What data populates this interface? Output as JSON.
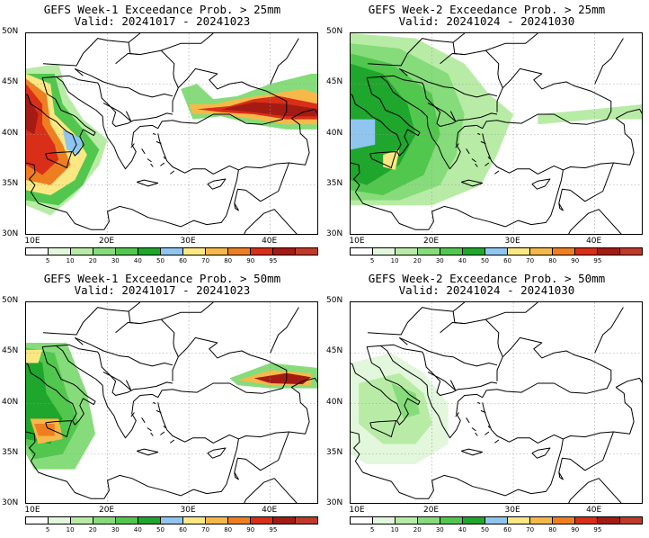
{
  "colorbar": {
    "colors": [
      "#ffffff",
      "#e2f7dc",
      "#b8eca6",
      "#86dc7a",
      "#52c74e",
      "#1fa62d",
      "#8fc6f0",
      "#fbe883",
      "#f7b84a",
      "#ee7f21",
      "#d92e18",
      "#a41b14",
      "#c0392b"
    ],
    "labels": [
      "5",
      "10",
      "20",
      "30",
      "40",
      "50",
      "60",
      "70",
      "80",
      "90",
      "95"
    ]
  },
  "axes": {
    "lat_labels": [
      "50N",
      "45N",
      "40N",
      "35N",
      "30N"
    ],
    "lon_labels": [
      "10E",
      "20E",
      "30E",
      "40E"
    ]
  },
  "panels": [
    {
      "title": "GEFS Week-1 Exceedance Prob. > 25mm",
      "valid": "Valid: 20241017 - 20241023",
      "pattern": "w1_25"
    },
    {
      "title": "GEFS Week-2 Exceedance Prob. > 25mm",
      "valid": "Valid: 20241024 - 20241030",
      "pattern": "w2_25"
    },
    {
      "title": "GEFS Week-1 Exceedance Prob. > 50mm",
      "valid": "Valid: 20241017 - 20241023",
      "pattern": "w1_50"
    },
    {
      "title": "GEFS Week-2 Exceedance Prob. > 50mm",
      "valid": "Valid: 20241024 - 20241030",
      "pattern": "w2_50"
    }
  ]
}
